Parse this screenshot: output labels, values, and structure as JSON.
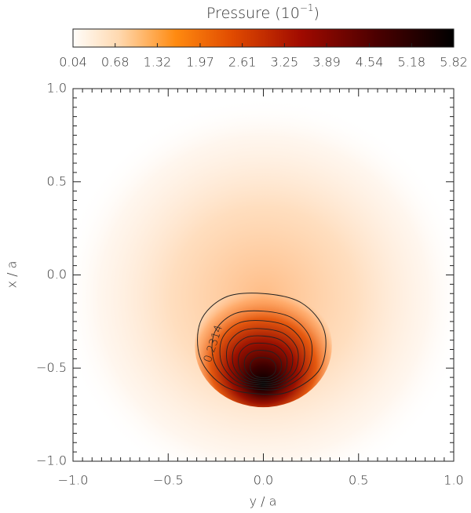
{
  "chart_data": {
    "type": "heatmap",
    "colorbar": {
      "label": [
        "Pressure (10",
        "−1",
        ")"
      ],
      "lim": [
        0.04,
        5.82
      ],
      "ticks": [
        0.04,
        0.68,
        1.32,
        1.97,
        2.61,
        3.25,
        3.89,
        4.54,
        5.18,
        5.82
      ]
    },
    "x_label": "y / a",
    "y_label": "x / a",
    "xlim": [
      -1,
      1
    ],
    "ylim": [
      -1,
      1
    ],
    "xticks": [
      {
        "value": -1,
        "label": "−1.0"
      },
      {
        "value": -0.5,
        "label": "−0.5"
      },
      {
        "value": 0,
        "label": "0.0"
      },
      0.5,
      {
        "value": 1,
        "label": "1.0"
      }
    ],
    "yticks": [
      {
        "value": -1,
        "label": "−1.0"
      },
      {
        "value": -0.5,
        "label": "−0.5"
      },
      {
        "value": 0,
        "label": "0.0"
      },
      0.5,
      {
        "value": 1,
        "label": "1.0"
      }
    ],
    "contour_label": 0.2314
  }
}
